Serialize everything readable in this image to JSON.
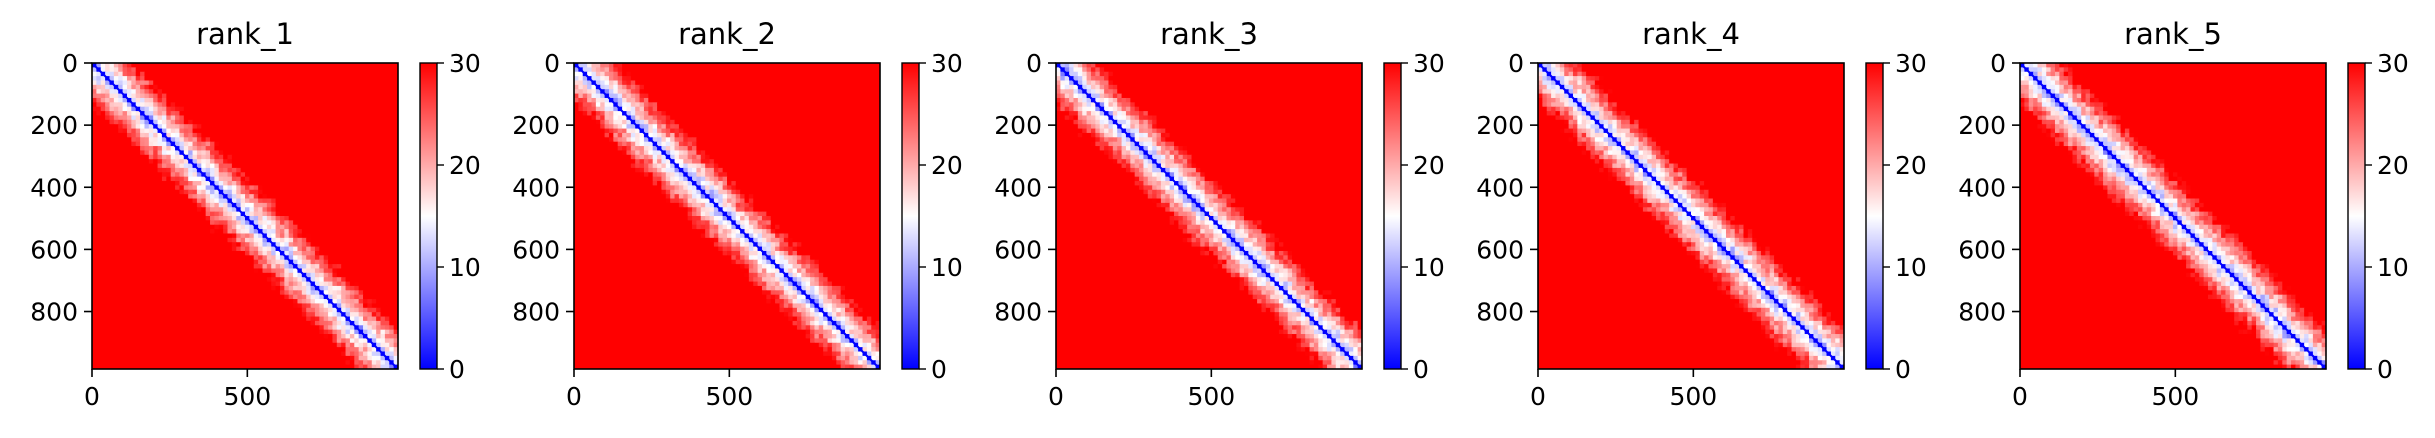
{
  "chart_data": [
    {
      "type": "heatmap",
      "title": "rank_1",
      "xlim": [
        0,
        985
      ],
      "ylim": [
        985,
        0
      ],
      "x_ticks": [
        0,
        500
      ],
      "y_ticks": [
        0,
        200,
        400,
        600,
        800
      ],
      "colorbar": {
        "min": 0,
        "max": 30,
        "ticks": [
          0,
          10,
          20,
          30
        ],
        "colormap": "bwr"
      },
      "texture_seed": 11
    },
    {
      "type": "heatmap",
      "title": "rank_2",
      "xlim": [
        0,
        985
      ],
      "ylim": [
        985,
        0
      ],
      "x_ticks": [
        0,
        500
      ],
      "y_ticks": [
        0,
        200,
        400,
        600,
        800
      ],
      "colorbar": {
        "min": 0,
        "max": 30,
        "ticks": [
          0,
          10,
          20,
          30
        ],
        "colormap": "bwr"
      },
      "texture_seed": 23
    },
    {
      "type": "heatmap",
      "title": "rank_3",
      "xlim": [
        0,
        985
      ],
      "ylim": [
        985,
        0
      ],
      "x_ticks": [
        0,
        500
      ],
      "y_ticks": [
        0,
        200,
        400,
        600,
        800
      ],
      "colorbar": {
        "min": 0,
        "max": 30,
        "ticks": [
          0,
          10,
          20,
          30
        ],
        "colormap": "bwr"
      },
      "texture_seed": 37
    },
    {
      "type": "heatmap",
      "title": "rank_4",
      "xlim": [
        0,
        985
      ],
      "ylim": [
        985,
        0
      ],
      "x_ticks": [
        0,
        500
      ],
      "y_ticks": [
        0,
        200,
        400,
        600,
        800
      ],
      "colorbar": {
        "min": 0,
        "max": 30,
        "ticks": [
          0,
          10,
          20,
          30
        ],
        "colormap": "bwr"
      },
      "texture_seed": 41
    },
    {
      "type": "heatmap",
      "title": "rank_5",
      "xlim": [
        0,
        985
      ],
      "ylim": [
        985,
        0
      ],
      "x_ticks": [
        0,
        500
      ],
      "y_ticks": [
        0,
        200,
        400,
        600,
        800
      ],
      "colorbar": {
        "min": 0,
        "max": 30,
        "ticks": [
          0,
          10,
          20,
          30
        ],
        "colormap": "bwr"
      },
      "texture_seed": 53
    }
  ],
  "colors": {
    "low": "#0000ff",
    "mid": "#ffffff",
    "high": "#ff0000",
    "axis": "#000000"
  }
}
